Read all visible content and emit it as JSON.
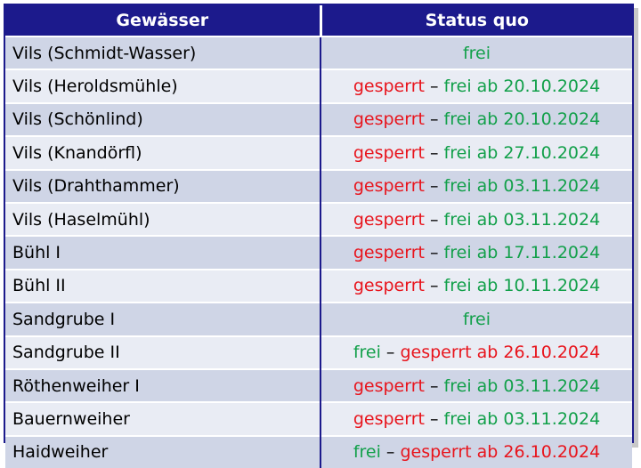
{
  "header": {
    "col1": "Gewässer",
    "col2": "Status quo"
  },
  "colors": {
    "header_bg": "#1c1a8c",
    "red": "#e8141c",
    "green": "#12a04a"
  },
  "rows": [
    {
      "name": "Vils (Schmidt-Wasser)",
      "first": "frei",
      "first_color": "green",
      "dash": "",
      "second": "",
      "second_color": ""
    },
    {
      "name": "Vils (Heroldsmühle)",
      "first": "gesperrt",
      "first_color": "red",
      "dash": " – ",
      "second": "frei ab 20.10.2024",
      "second_color": "green"
    },
    {
      "name": "Vils (Schönlind)",
      "first": "gesperrt",
      "first_color": "red",
      "dash": " – ",
      "second": "frei ab 20.10.2024",
      "second_color": "green"
    },
    {
      "name": "Vils (Knandörfl)",
      "first": "gesperrt",
      "first_color": "red",
      "dash": " – ",
      "second": "frei ab 27.10.2024",
      "second_color": "green"
    },
    {
      "name": "Vils (Drahthammer)",
      "first": "gesperrt",
      "first_color": "red",
      "dash": " – ",
      "second": "frei ab 03.11.2024",
      "second_color": "green"
    },
    {
      "name": "Vils (Haselmühl)",
      "first": "gesperrt",
      "first_color": "red",
      "dash": " – ",
      "second": "frei ab 03.11.2024",
      "second_color": "green"
    },
    {
      "name": "Bühl I",
      "first": "gesperrt",
      "first_color": "red",
      "dash": " – ",
      "second": "frei ab 17.11.2024",
      "second_color": "green"
    },
    {
      "name": "Bühl II",
      "first": "gesperrt",
      "first_color": "red",
      "dash": " – ",
      "second": "frei ab 10.11.2024",
      "second_color": "green"
    },
    {
      "name": "Sandgrube I",
      "first": "frei",
      "first_color": "green",
      "dash": "",
      "second": "",
      "second_color": ""
    },
    {
      "name": "Sandgrube II",
      "first": "frei",
      "first_color": "green",
      "dash": " – ",
      "second": "gesperrt ab 26.10.2024",
      "second_color": "red"
    },
    {
      "name": "Röthenweiher I",
      "first": "gesperrt",
      "first_color": "red",
      "dash": " – ",
      "second": "frei ab 03.11.2024",
      "second_color": "green"
    },
    {
      "name": "Bauernweiher",
      "first": "gesperrt",
      "first_color": "red",
      "dash": " – ",
      "second": "frei ab 03.11.2024",
      "second_color": "green"
    },
    {
      "name": "Haidweiher",
      "first": "frei",
      "first_color": "green",
      "dash": " – ",
      "second": "gesperrt ab 26.10.2024",
      "second_color": "red"
    }
  ]
}
